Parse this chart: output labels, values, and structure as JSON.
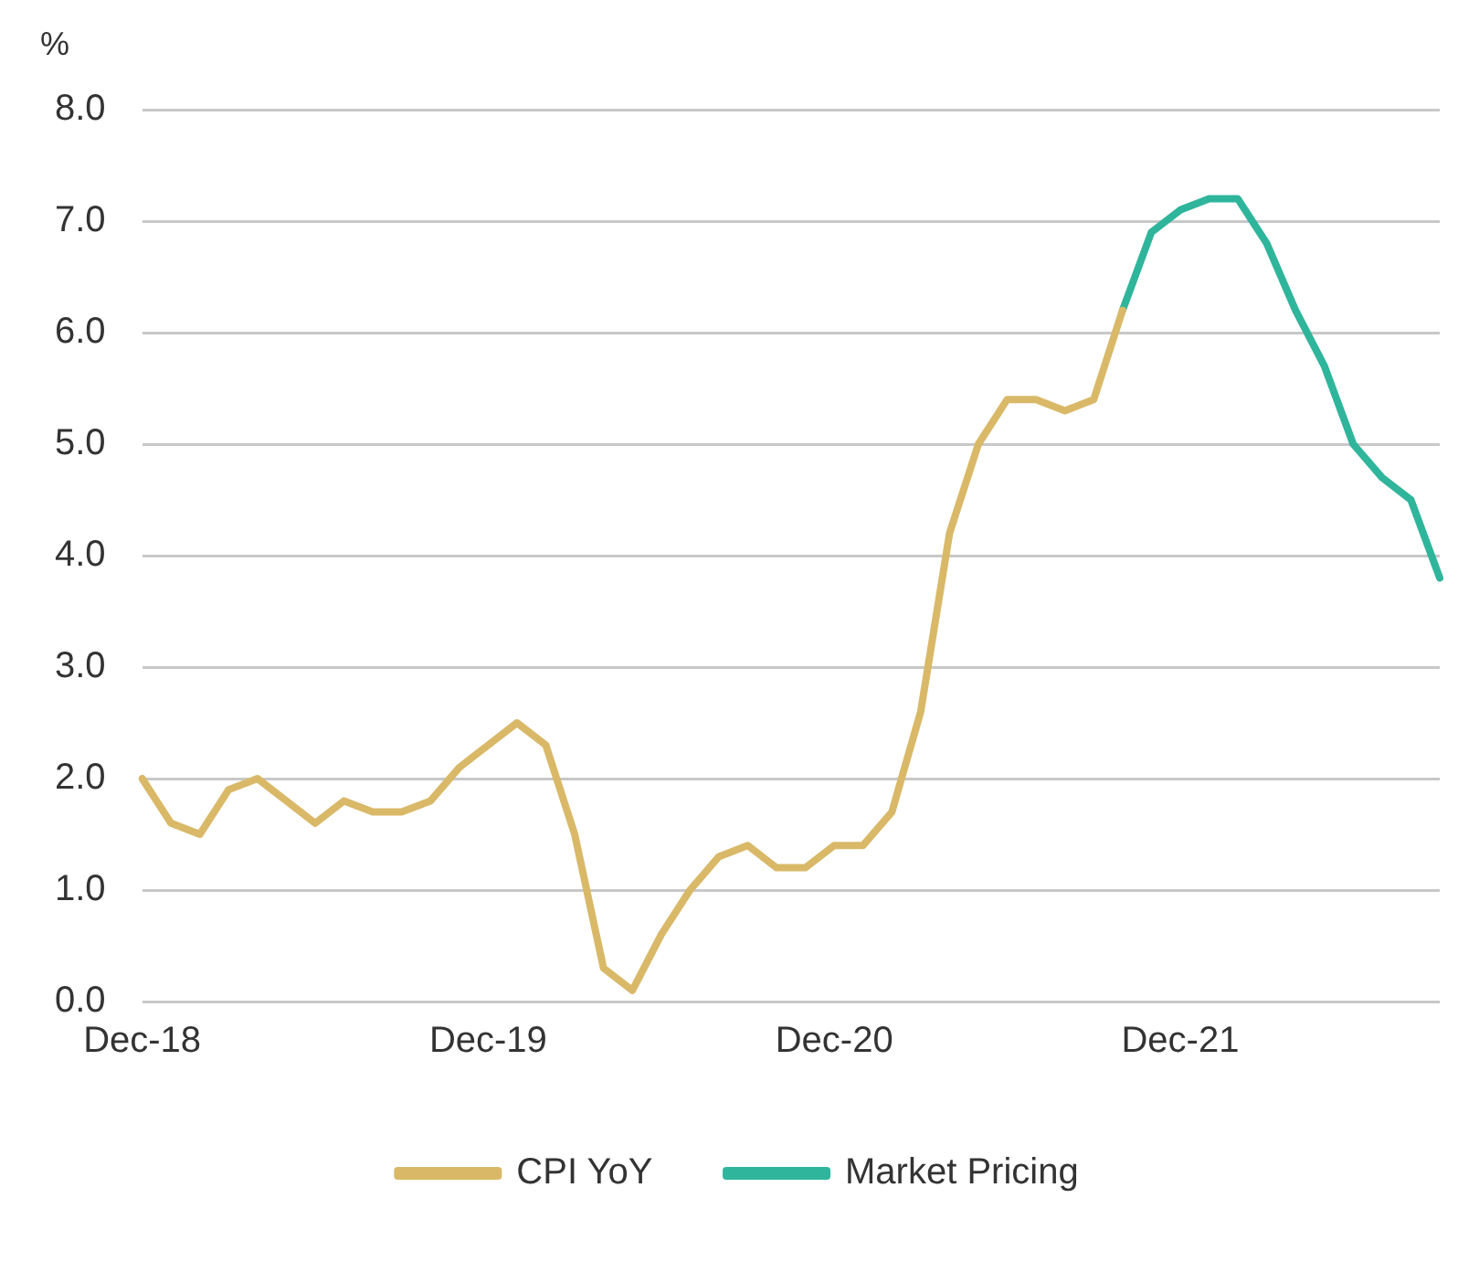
{
  "chart_data": {
    "type": "line",
    "ylabel": "%",
    "categories": [
      "Dec-18",
      null,
      null,
      null,
      null,
      null,
      null,
      null,
      null,
      null,
      null,
      null,
      "Dec-19",
      null,
      null,
      null,
      null,
      null,
      null,
      null,
      null,
      null,
      null,
      null,
      "Dec-20",
      null,
      null,
      null,
      null,
      null,
      null,
      null,
      null,
      null,
      null,
      null,
      "Dec-21",
      null,
      null,
      null,
      null,
      null,
      null,
      null,
      null,
      null
    ],
    "series": [
      {
        "name": "CPI YoY",
        "color": "#d9b968",
        "values": [
          2.0,
          1.6,
          1.5,
          1.9,
          2.0,
          1.8,
          1.6,
          1.8,
          1.7,
          1.7,
          1.8,
          2.1,
          2.3,
          2.5,
          2.3,
          1.5,
          0.3,
          0.1,
          0.6,
          1.0,
          1.3,
          1.4,
          1.2,
          1.2,
          1.4,
          1.4,
          1.7,
          2.6,
          4.2,
          5.0,
          5.4,
          5.4,
          5.3,
          5.4,
          6.2,
          null,
          null,
          null,
          null,
          null,
          null,
          null,
          null,
          null,
          null,
          null
        ]
      },
      {
        "name": "Market Pricing",
        "color": "#2fb59b",
        "values": [
          null,
          null,
          null,
          null,
          null,
          null,
          null,
          null,
          null,
          null,
          null,
          null,
          null,
          null,
          null,
          null,
          null,
          null,
          null,
          null,
          null,
          null,
          null,
          null,
          null,
          null,
          null,
          null,
          null,
          null,
          null,
          null,
          null,
          null,
          6.2,
          6.9,
          7.1,
          7.2,
          7.2,
          6.8,
          6.2,
          5.7,
          5.0,
          4.7,
          4.5,
          3.8
        ]
      }
    ],
    "ylim": [
      0,
      8
    ],
    "yticks": [
      {
        "value": 0,
        "label": "0.0"
      },
      {
        "value": 1,
        "label": "1.0"
      },
      {
        "value": 2,
        "label": "2.0"
      },
      {
        "value": 3,
        "label": "3.0"
      },
      {
        "value": 4,
        "label": "4.0"
      },
      {
        "value": 5,
        "label": "5.0"
      },
      {
        "value": 6,
        "label": "6.0"
      },
      {
        "value": 7,
        "label": "7.0"
      },
      {
        "value": 8,
        "label": "8.0"
      }
    ],
    "grid": "y",
    "legend": "bottom",
    "marker": "none",
    "line_style": "solid"
  }
}
